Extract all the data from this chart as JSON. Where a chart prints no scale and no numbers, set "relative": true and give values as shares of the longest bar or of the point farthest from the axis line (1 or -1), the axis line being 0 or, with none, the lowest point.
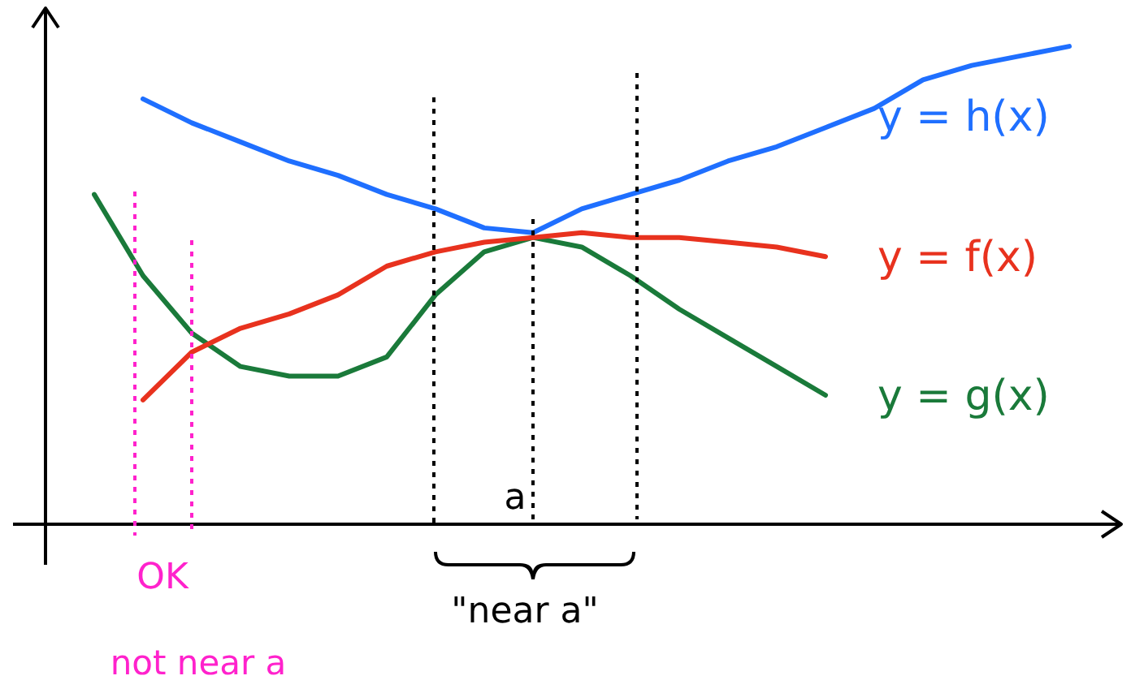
{
  "chart_data": {
    "type": "line",
    "relative": true,
    "legend": false,
    "marker": "none",
    "line_style": "solid",
    "categories": [
      null,
      null,
      null,
      null,
      null,
      null,
      null,
      null,
      null,
      null,
      null,
      null,
      null,
      null,
      null,
      null,
      null,
      null,
      null,
      null,
      null
    ],
    "series": [
      {
        "name": "y = h(x)",
        "color": "#1f6fff",
        "values": [
          null,
          0.89,
          0.84,
          0.8,
          0.76,
          0.73,
          0.69,
          0.66,
          0.62,
          0.61,
          0.66,
          0.69,
          0.72,
          0.76,
          0.79,
          0.83,
          0.87,
          0.93,
          0.96,
          0.98,
          1
        ]
      },
      {
        "name": "y = f(x)",
        "color": "#e8321e",
        "values": [
          null,
          0.26,
          0.36,
          0.41,
          0.44,
          0.48,
          0.54,
          0.57,
          0.59,
          0.6,
          0.61,
          0.6,
          0.6,
          0.59,
          0.58,
          0.56,
          null,
          null,
          null,
          null,
          null
        ]
      },
      {
        "name": "y = g(x)",
        "color": "#1a7a3a",
        "values": [
          0.69,
          0.52,
          0.4,
          0.33,
          0.31,
          0.31,
          0.35,
          0.48,
          0.57,
          0.6,
          0.58,
          0.52,
          0.45,
          0.39,
          0.33,
          0.27,
          null,
          null,
          null,
          null,
          null
        ]
      }
    ],
    "annotations": [
      "OK",
      "not near a",
      "a",
      "\"near a\""
    ]
  }
}
